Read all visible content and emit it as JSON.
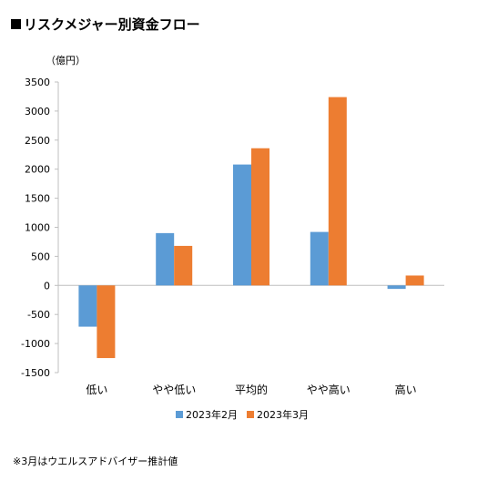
{
  "chart_data": {
    "type": "bar",
    "title": "リスクメジャー別資金フロー",
    "unit_label": "（億円）",
    "categories": [
      "低い",
      "やや低い",
      "平均的",
      "やや高い",
      "高い"
    ],
    "series": [
      {
        "name": "2023年2月",
        "color": "#5B9BD5",
        "values": [
          -710,
          900,
          2080,
          920,
          -60
        ]
      },
      {
        "name": "2023年3月",
        "color": "#ED7D31",
        "values": [
          -1250,
          680,
          2360,
          3240,
          170
        ]
      }
    ],
    "ylim": [
      -1500,
      3500
    ],
    "yticks": [
      3500,
      3000,
      2500,
      2000,
      1500,
      1000,
      500,
      0,
      -500,
      -1000,
      -1500
    ],
    "ytick_labels": [
      "3500",
      "3000",
      "2500",
      "2000",
      "1500",
      "1000",
      "500",
      "0",
      "-500",
      "-1000",
      "-1500"
    ],
    "grid": false,
    "legend_position": "bottom"
  },
  "footnote": "※3月はウエルスアドバイザー推計値"
}
